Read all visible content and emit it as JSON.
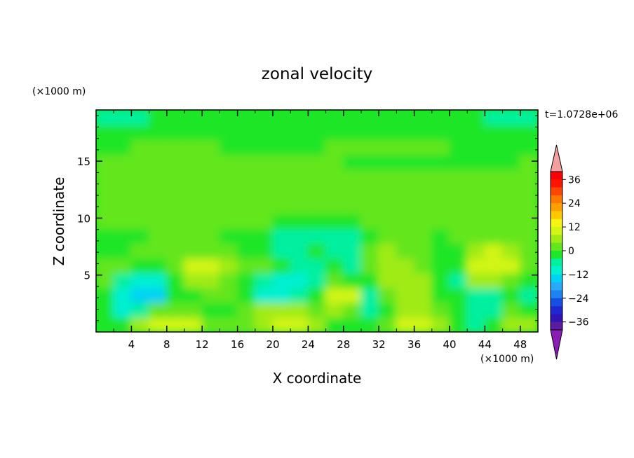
{
  "chart_data": {
    "type": "heatmap",
    "title": "zonal velocity",
    "xlabel": "X coordinate",
    "ylabel": "Z coordinate",
    "x_unit": "(×1000 m)",
    "y_unit": "(×1000 m)",
    "time_label": "t=1.0728e+06",
    "xlim": [
      0,
      50
    ],
    "ylim": [
      0,
      19.5
    ],
    "x_ticks": [
      4,
      8,
      12,
      16,
      20,
      24,
      28,
      32,
      36,
      40,
      44,
      48
    ],
    "y_ticks": [
      5,
      10,
      15
    ],
    "colorbar": {
      "levels": [
        -40,
        -36,
        -32,
        -28,
        -24,
        -20,
        -16,
        -12,
        -8,
        -4,
        0,
        4,
        8,
        12,
        16,
        20,
        24,
        28,
        32,
        36,
        40
      ],
      "labels": [
        -36,
        -24,
        -12,
        0,
        12,
        24,
        36
      ],
      "colors": [
        "#8c1cb4",
        "#5a1ca0",
        "#3214b4",
        "#1e28d2",
        "#1450e6",
        "#1e82f0",
        "#28aaf5",
        "#00d2f5",
        "#00f0d2",
        "#00f0a0",
        "#1ee628",
        "#64e61e",
        "#a0eb14",
        "#d2f514",
        "#f5f514",
        "#ffc800",
        "#ffa000",
        "#ff7800",
        "#ff4600",
        "#ff1400",
        "#ff0000",
        "#f5a0a0"
      ]
    },
    "cells": [
      [
        -4,
        -4,
        6,
        10,
        10,
        8,
        3,
        0,
        0,
        7,
        10,
        8,
        5,
        -2,
        -4,
        -3,
        0,
        9,
        10,
        6,
        -2,
        -6,
        -3,
        6,
        4
      ],
      [
        -2,
        -11,
        -6,
        1,
        2,
        1,
        -1,
        -2,
        0,
        5,
        6,
        5,
        1,
        6,
        1,
        -5,
        -1,
        5,
        5,
        2,
        -4,
        -7,
        -5,
        0,
        -4
      ],
      [
        -2,
        -10,
        -14,
        -14,
        -4,
        -1,
        1,
        0,
        -2,
        -12,
        -12,
        -8,
        -2,
        11,
        8,
        -5,
        2,
        6,
        6,
        -1,
        -4,
        -6,
        -6,
        -4,
        -8
      ],
      [
        2,
        -5,
        -9,
        -11,
        -3,
        5,
        6,
        3,
        -1,
        -7,
        -12,
        -10,
        -6,
        0,
        -2,
        -4,
        4,
        7,
        6,
        -2,
        -5,
        4,
        6,
        2,
        -2
      ],
      [
        2,
        0,
        -1,
        -3,
        1,
        9,
        8,
        4,
        0,
        0,
        -4,
        -6,
        -5,
        -3,
        -5,
        1,
        6,
        7,
        2,
        -3,
        -4,
        8,
        11,
        8,
        0
      ],
      [
        -2,
        -3,
        0,
        1,
        0,
        2,
        1,
        0,
        -2,
        -4,
        -6,
        -6,
        -4,
        -6,
        -8,
        0,
        4,
        3,
        0,
        -3,
        -1,
        5,
        8,
        6,
        1
      ],
      [
        -1,
        -2,
        -1,
        0,
        1,
        1,
        0,
        -1,
        -2,
        -4,
        -6,
        -7,
        -6,
        -5,
        -5,
        -2,
        0,
        1,
        0,
        -1,
        0,
        2,
        3,
        2,
        0
      ],
      [
        2,
        1,
        2,
        2,
        2,
        2,
        2,
        2,
        1,
        0,
        -2,
        -3,
        -3,
        -2,
        -1,
        0,
        1,
        1,
        1,
        1,
        1,
        1,
        2,
        2,
        1
      ],
      [
        3,
        3,
        3,
        3,
        3,
        3,
        3,
        3,
        3,
        3,
        3,
        3,
        3,
        3,
        3,
        3,
        3,
        3,
        3,
        3,
        3,
        3,
        3,
        3,
        3
      ],
      [
        3,
        3,
        3,
        3,
        3,
        3,
        3,
        3,
        3,
        3,
        3,
        3,
        3,
        3,
        3,
        3,
        3,
        3,
        3,
        3,
        3,
        3,
        3,
        3,
        3
      ],
      [
        2,
        2,
        2,
        3,
        2,
        2,
        2,
        2,
        3,
        3,
        3,
        3,
        3,
        3,
        2,
        2,
        2,
        2,
        2,
        2,
        2,
        2,
        2,
        2,
        2
      ],
      [
        1,
        1,
        1,
        1,
        1,
        2,
        1,
        1,
        1,
        1,
        1,
        1,
        0,
        0,
        -1,
        -1,
        -1,
        -1,
        -1,
        -1,
        -1,
        -1,
        -1,
        -1,
        0
      ],
      [
        -1,
        -1,
        0,
        0,
        0,
        1,
        0,
        -1,
        -1,
        -1,
        -1,
        -1,
        -1,
        0,
        1,
        0,
        0,
        0,
        0,
        0,
        -1,
        -1,
        -1,
        -1,
        -1
      ],
      [
        -2,
        -2,
        -2,
        -1,
        -2,
        -2,
        -3,
        -3,
        -2,
        -2,
        -2,
        -2,
        -2,
        -2,
        -2,
        -2,
        -2,
        -2,
        -2,
        -2,
        -2,
        -2,
        -2,
        -2,
        -2
      ],
      [
        -6,
        -5,
        -5,
        -4,
        -3,
        -3,
        -3,
        -3,
        -3,
        -2,
        -2,
        -2,
        -2,
        -2,
        -3,
        -3,
        -3,
        -3,
        -3,
        -3,
        -3,
        -4,
        -5,
        -6,
        -6
      ]
    ]
  }
}
